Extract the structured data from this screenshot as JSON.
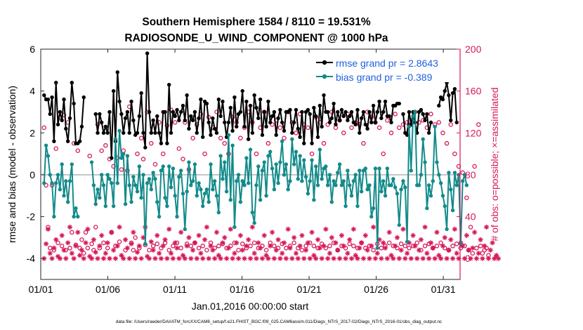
{
  "chart_data": {
    "type": "line",
    "title": "Southern Hemisphere 1584 / 8110 = 19.531%",
    "subtitle": "RADIOSONDE_U_WIND_COMPONENT @ 1000 hPa",
    "xlabel": "Jan.01,2016 00:00:00 start",
    "ylabel_left": "rmse and bias (model - observation)",
    "ylabel_right": "# of obs: o=possible; ×=assimilated",
    "footer": "data file: /Users/raeder/DAI/ATM_forcXX/CAM6_setup/f.e21.FHIST_BGC.f09_025.CAM6assim.011/Diags_NTrS_2017-02/Diags_NTrS_2016-01/obs_diag_output.nc",
    "x_ticks": [
      "01/01",
      "01/06",
      "01/11",
      "01/16",
      "01/21",
      "01/26",
      "01/31"
    ],
    "xlim": [
      0,
      31.25
    ],
    "ylim_left": [
      -5,
      6
    ],
    "yticks_left": [
      -4,
      -2,
      0,
      2,
      4,
      6
    ],
    "ylim_right": [
      -20,
      200
    ],
    "yticks_right": [
      0,
      40,
      80,
      120,
      160,
      200
    ],
    "zero_line": 0,
    "legend_position": "top-right",
    "colors": {
      "rmse": "#000000",
      "bias": "#138a8a",
      "obs": "#d6185a",
      "axis_right": "#d6185a",
      "zero": "#b8b8b8",
      "legend_text": "#1f5fe0"
    },
    "series": [
      {
        "name": "rmse grand pr = 2.8643",
        "axis": "left",
        "values": [
          3.8,
          3.6,
          3.6,
          2.9,
          3.7,
          1.6,
          4.4,
          2.4,
          3.0,
          2.6,
          3.6,
          2.2,
          1.6,
          2.7,
          4.4,
          3.4,
          1.5,
          1.5,
          1.6,
          2.3,
          3.7,
          null,
          null,
          null,
          null,
          null,
          2.9,
          2.0,
          2.9,
          2.5,
          2.0,
          2.3,
          2.0,
          3.0,
          0.8,
          4.0,
          1.6,
          4.9,
          3.5,
          2.9,
          2.0,
          2.7,
          3.0,
          2.0,
          3.5,
          2.6,
          1.9,
          2.0,
          2.8,
          3.9,
          2.0,
          1.3,
          5.8,
          3.0,
          2.0,
          2.6,
          2.0,
          2.8,
          2.0,
          1.5,
          3.0,
          3.0,
          1.5,
          4.3,
          2.0,
          3.0,
          2.8,
          3.1,
          2.6,
          3.0,
          3.3,
          2.6,
          3.8,
          2.2,
          2.8,
          2.6,
          3.0,
          2.0,
          2.7,
          3.6,
          1.8,
          3.5,
          3.4,
          2.5,
          1.9,
          2.7,
          2.2,
          2.0,
          3.6,
          2.8,
          3.5,
          2.5,
          1.8,
          2.5,
          3.2,
          2.1,
          3.7,
          2.3,
          2.9,
          3.0,
          4.0,
          2.3,
          3.5,
          1.7,
          3.3,
          2.0,
          3.8,
          3.2,
          2.7,
          3.6,
          1.9,
          3.0,
          2.3,
          3.5,
          2.5,
          2.8,
          3.0,
          1.9,
          2.7,
          3.1,
          2.5,
          2.1,
          3.0,
          3.0,
          3.1,
          2.0,
          2.5,
          3.1,
          2.2,
          1.8,
          3.0,
          1.5,
          3.0,
          3.1,
          2.9,
          1.5,
          3.2,
          2.8,
          1.8,
          3.3,
          2.3,
          3.8,
          3.0,
          3.0,
          2.5,
          2.7,
          3.4,
          2.4,
          3.0,
          2.6,
          3.1,
          2.8,
          3.0,
          2.6,
          2.8,
          3.0,
          2.5,
          2.4,
          3.1,
          2.0,
          2.7,
          3.0,
          2.4,
          2.2,
          3.0,
          2.5,
          3.3,
          2.5,
          3.0,
          3.5,
          2.7,
          3.0,
          3.5,
          2.8,
          2.8,
          2.5,
          3.3,
          3.3,
          3.4,
          3.4,
          null,
          2.9,
          2.0,
          1.9,
          3.0,
          2.4,
          3.0,
          2.5,
          2.0,
          3.0,
          3.1,
          2.9,
          2.6,
          2.9,
          2.0,
          2.5,
          null,
          null,
          null,
          3.3,
          3.7,
          3.6,
          4.0,
          4.4,
          3.8,
          2.6,
          3.9,
          4.1,
          2.5
        ]
      },
      {
        "name": "bias grand pr = -0.389",
        "axis": "left",
        "values": [
          -0.4,
          1.4,
          0.9,
          0.0,
          -0.4,
          -2.0,
          -0.4,
          0.0,
          -0.7,
          0.5,
          -1.0,
          -0.3,
          -1.3,
          -0.3,
          0.5,
          -2.0,
          -1.6,
          -2.0,
          null,
          null,
          null,
          null,
          null,
          null,
          0.6,
          -0.5,
          -1.4,
          -0.7,
          -1.1,
          0.0,
          -0.5,
          -1.5,
          0.0,
          -0.2,
          -0.4,
          -1.5,
          1.7,
          -0.4,
          2.1,
          0.8,
          1.0,
          -1.4,
          0.9,
          -0.5,
          -1.3,
          -0.1,
          -0.5,
          -0.8,
          0.4,
          -1.1,
          0.0,
          -3.3,
          -0.4,
          -0.2,
          -0.7,
          0.1,
          -0.2,
          -1.3,
          -2.0,
          0.2,
          0.4,
          -1.1,
          -1.5,
          0.4,
          -0.6,
          0.3,
          -1.0,
          -2.0,
          -0.1,
          0.2,
          -0.9,
          -2.6,
          -0.8,
          0.6,
          -0.5,
          -0.3,
          0.5,
          -1.0,
          -0.4,
          -0.7,
          -1.5,
          -0.9,
          -0.7,
          -1.3,
          0.5,
          -0.7,
          -0.3,
          -1.0,
          -1.8,
          0.9,
          -0.2,
          0.6,
          -0.8,
          1.9,
          -1.2,
          1.4,
          -2.5,
          -0.3,
          0.0,
          -1.3,
          -0.3,
          -0.5,
          0.8,
          -0.4,
          1.2,
          -1.8,
          -2.3,
          -0.5,
          0.4,
          -1.2,
          0.2,
          0.6,
          -1.0,
          0.9,
          1.1,
          0.3,
          -0.7,
          0.5,
          -0.4,
          0.6,
          1.6,
          0.0,
          0.5,
          -0.7,
          -0.3,
          1.7,
          0.5,
          1.1,
          -0.2,
          0.9,
          -0.3,
          0.7,
          -0.1,
          -0.9,
          -0.3,
          0.7,
          -1.2,
          0.4,
          -0.5,
          1.2,
          -0.2,
          0.3,
          0.4,
          -0.5,
          0.0,
          -1.3,
          -0.3,
          -0.5,
          0.1,
          0.5,
          -0.5,
          -0.3,
          -1.5,
          0.2,
          -0.5,
          -1.0,
          -0.3,
          0.0,
          -1.5,
          0.2,
          -0.8,
          0.2,
          0.3,
          -0.7,
          -0.5,
          -2.0,
          -1.6,
          0.3,
          -3.5,
          0.3,
          -0.8,
          -0.3,
          -1.0,
          0.3,
          -0.5,
          -0.5,
          -0.2,
          -0.6,
          -0.9,
          -2.4,
          -0.7,
          -0.3,
          -0.6,
          -3.2,
          2.3,
          0.2,
          2.8,
          3.0,
          -0.5,
          -0.5,
          0.0,
          1.7,
          0.6,
          -1.6,
          -0.5,
          -1.0,
          -0.3,
          2.3,
          0.6,
          0.0,
          -0.4,
          -1.0,
          -1.5,
          -2.6,
          0.1,
          -0.7,
          -1.7,
          0.1,
          -0.5,
          0.0,
          -3.3,
          -0.3,
          0.0,
          -0.5
        ]
      },
      {
        "name": "obs possible",
        "axis": "right",
        "marker": "o",
        "values": [
          125,
          70,
          30,
          10,
          70,
          8,
          105,
          15,
          135,
          12,
          137,
          8,
          130,
          10,
          25,
          110,
          13,
          103,
          10,
          18,
          5,
          25,
          10,
          98,
          14,
          8,
          30,
          128,
          10,
          103,
          15,
          108,
          10,
          95,
          25,
          88,
          12,
          96,
          16,
          85,
          103,
          8,
          84,
          145,
          15,
          8,
          20,
          100,
          10,
          115,
          95,
          13,
          140,
          8,
          110,
          12,
          90,
          14,
          130,
          10,
          100,
          15,
          127,
          8,
          142,
          12,
          130,
          15,
          105,
          10,
          95,
          130,
          14,
          85,
          12,
          115,
          15,
          128,
          10,
          138,
          12,
          100,
          8,
          135,
          15,
          125,
          10,
          140,
          12,
          115,
          14,
          110,
          10,
          100,
          12,
          135,
          15,
          130,
          8,
          115,
          14,
          125,
          10,
          140,
          12,
          130,
          15,
          100,
          10,
          125,
          12,
          140,
          8,
          110,
          15,
          128,
          12,
          132,
          10,
          125,
          14,
          115,
          10,
          140,
          12,
          130,
          15,
          120,
          10,
          138,
          8,
          128,
          12,
          125,
          15,
          100,
          12,
          135,
          10,
          130,
          14,
          110,
          10,
          128,
          12,
          140,
          15,
          125,
          8,
          132,
          12,
          120,
          10,
          138,
          14,
          125,
          12,
          130,
          10,
          128,
          15,
          110,
          10,
          140,
          12,
          135,
          8,
          130,
          14,
          125,
          10,
          100,
          12,
          132,
          15,
          120,
          12,
          138,
          10,
          125,
          14,
          128,
          12,
          130,
          10,
          128,
          12,
          140,
          15,
          130,
          8,
          132,
          12,
          125,
          14,
          138,
          10,
          128,
          12,
          130,
          15,
          120,
          10,
          110,
          8,
          128,
          12,
          100,
          14,
          88,
          10,
          82,
          12,
          58,
          8,
          30,
          5,
          88,
          10,
          128,
          12,
          5,
          8,
          10,
          3
        ]
      },
      {
        "name": "obs assimilated",
        "axis": "right",
        "marker": "*",
        "values": [
          0,
          14,
          28,
          5,
          0,
          10,
          18,
          2,
          0,
          22,
          8,
          0,
          15,
          30,
          5,
          0,
          12,
          25,
          3,
          8,
          0,
          15,
          28,
          2,
          0,
          18,
          6,
          0,
          12,
          22,
          0,
          5,
          15,
          0,
          25,
          8,
          0,
          12,
          30,
          3,
          0,
          18,
          10,
          0,
          14,
          25,
          0,
          6,
          12,
          0,
          20,
          30,
          2,
          0,
          16,
          8,
          0,
          22,
          5,
          0,
          12,
          18,
          0,
          28,
          5,
          0,
          15,
          10,
          0,
          25,
          3,
          0,
          12,
          20,
          0,
          8,
          15,
          0,
          22,
          5,
          0,
          18,
          30,
          0,
          12,
          8,
          0,
          25,
          3,
          0,
          15,
          20,
          0,
          10,
          28,
          0,
          5,
          15,
          0,
          22,
          8,
          0,
          12,
          18,
          0,
          30,
          5,
          0,
          15,
          10,
          0,
          22,
          3,
          0,
          12,
          25,
          0,
          8,
          18,
          0,
          5,
          15,
          0,
          28,
          10,
          0,
          20,
          5,
          0,
          12,
          22,
          0,
          8,
          15,
          0,
          25,
          3,
          0,
          18,
          10,
          0,
          12,
          28,
          0,
          5,
          20,
          0,
          15,
          8,
          0,
          22,
          12,
          0,
          5,
          18,
          0,
          28,
          3,
          0,
          10,
          15,
          0,
          22,
          8,
          0,
          12,
          30,
          0,
          5,
          18,
          0,
          15,
          10,
          0,
          25,
          3,
          0,
          12,
          20,
          0,
          8,
          28,
          0,
          5,
          15,
          0,
          22,
          12,
          0,
          8,
          18,
          0,
          30,
          5,
          0,
          15,
          10,
          0,
          25,
          3,
          0,
          12,
          20,
          0,
          8,
          18,
          0,
          28,
          5,
          0,
          15,
          12,
          0,
          22,
          8,
          0,
          10,
          25,
          0,
          5,
          18,
          0,
          12,
          30,
          0,
          8,
          15,
          0,
          3,
          0
        ]
      }
    ]
  }
}
